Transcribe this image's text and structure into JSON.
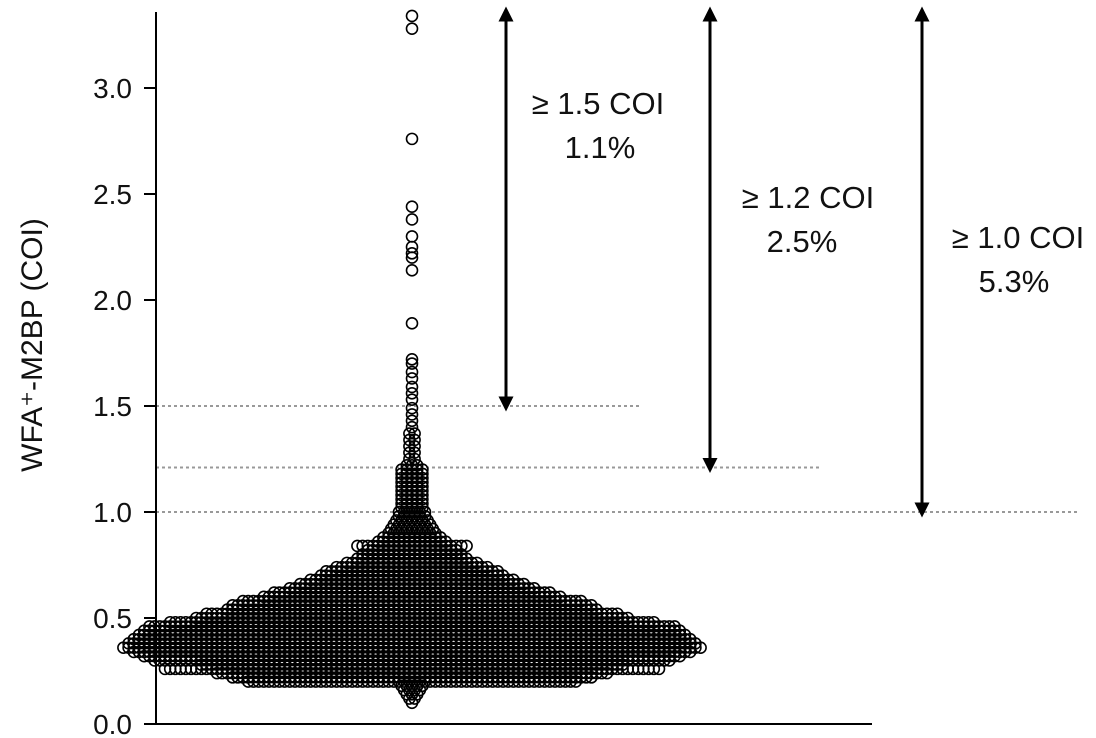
{
  "chart_data": {
    "type": "scatter",
    "subtype": "beeswarm",
    "title": "",
    "xlabel": "",
    "ylabel": "WFA⁺-M2BP (COI)",
    "ylim": [
      0.0,
      3.35
    ],
    "yticks": [
      "0.0",
      "0.5",
      "1.0",
      "1.5",
      "2.0",
      "2.5",
      "3.0"
    ],
    "grid": false,
    "legend": "none",
    "colors": {
      "marker_stroke": "#000000",
      "threshold_line": "#999999",
      "arrow": "#000000"
    },
    "thresholds": [
      {
        "value": 1.5,
        "label": "≥ 1.5 COI",
        "percent": "1.1%"
      },
      {
        "value": 1.21,
        "label": "≥ 1.2 COI",
        "percent": "2.5%"
      },
      {
        "value": 1.0,
        "label": "≥ 1.0 COI",
        "percent": "5.3%"
      }
    ],
    "series": [
      {
        "distribution_bins": [
          [
            0.1,
            1
          ],
          [
            0.12,
            2
          ],
          [
            0.14,
            3
          ],
          [
            0.16,
            4
          ],
          [
            0.18,
            5
          ],
          [
            0.2,
            64
          ],
          [
            0.22,
            70
          ],
          [
            0.24,
            76
          ],
          [
            0.26,
            96
          ],
          [
            0.28,
            82
          ],
          [
            0.3,
            100
          ],
          [
            0.32,
            104
          ],
          [
            0.34,
            108
          ],
          [
            0.36,
            112
          ],
          [
            0.38,
            110
          ],
          [
            0.4,
            108
          ],
          [
            0.42,
            106
          ],
          [
            0.44,
            104
          ],
          [
            0.46,
            102
          ],
          [
            0.48,
            94
          ],
          [
            0.5,
            84
          ],
          [
            0.52,
            80
          ],
          [
            0.54,
            72
          ],
          [
            0.56,
            70
          ],
          [
            0.58,
            66
          ],
          [
            0.6,
            58
          ],
          [
            0.62,
            54
          ],
          [
            0.64,
            48
          ],
          [
            0.66,
            44
          ],
          [
            0.68,
            40
          ],
          [
            0.7,
            36
          ],
          [
            0.72,
            34
          ],
          [
            0.74,
            30
          ],
          [
            0.76,
            26
          ],
          [
            0.78,
            22
          ],
          [
            0.8,
            20
          ],
          [
            0.82,
            18
          ],
          [
            0.84,
            22
          ],
          [
            0.86,
            14
          ],
          [
            0.88,
            12
          ],
          [
            0.9,
            10
          ],
          [
            0.92,
            9
          ],
          [
            0.94,
            8
          ],
          [
            0.96,
            7
          ],
          [
            0.98,
            6
          ],
          [
            1.0,
            6
          ],
          [
            1.02,
            5
          ],
          [
            1.04,
            5
          ],
          [
            1.06,
            5
          ],
          [
            1.08,
            5
          ],
          [
            1.1,
            5
          ],
          [
            1.12,
            5
          ],
          [
            1.14,
            5
          ],
          [
            1.16,
            5
          ],
          [
            1.18,
            5
          ],
          [
            1.2,
            5
          ],
          [
            1.22,
            3
          ],
          [
            1.25,
            2
          ],
          [
            1.28,
            2
          ],
          [
            1.31,
            2
          ],
          [
            1.34,
            2
          ],
          [
            1.37,
            2
          ],
          [
            1.4,
            1
          ],
          [
            1.43,
            1
          ],
          [
            1.46,
            1
          ],
          [
            1.49,
            1
          ]
        ],
        "outliers": [
          1.53,
          1.56,
          1.59,
          1.63,
          1.66,
          1.7,
          1.72,
          1.89,
          2.14,
          2.2,
          2.22,
          2.25,
          2.3,
          2.38,
          2.44,
          2.76,
          3.28,
          3.34
        ]
      }
    ]
  }
}
